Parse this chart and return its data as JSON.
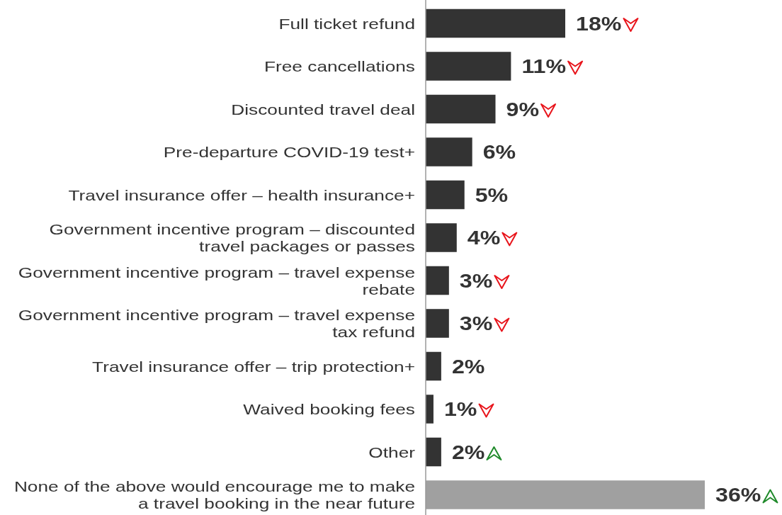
{
  "chart_data": {
    "type": "bar",
    "orientation": "horizontal",
    "categories": [
      "Full ticket refund",
      "Free cancellations",
      "Discounted travel deal",
      "Pre-departure COVID-19 test+",
      "Travel insurance offer – health insurance+",
      "Government incentive program – discounted travel packages or passes",
      "Government incentive program – travel expense rebate",
      "Government incentive program – travel expense tax refund",
      "Travel insurance offer – trip protection+",
      "Waived booking fees",
      "Other",
      "None of the above would encourage me to make a travel booking in the near future"
    ],
    "values": [
      18,
      11,
      9,
      6,
      5,
      4,
      3,
      3,
      2,
      1,
      2,
      36
    ],
    "value_labels": [
      "18%",
      "11%",
      "9%",
      "6%",
      "5%",
      "4%",
      "3%",
      "3%",
      "2%",
      "1%",
      "2%",
      "36%"
    ],
    "colors": [
      "#333333",
      "#333333",
      "#333333",
      "#333333",
      "#333333",
      "#333333",
      "#333333",
      "#333333",
      "#333333",
      "#333333",
      "#333333",
      "#a0a0a0"
    ]
  }
}
